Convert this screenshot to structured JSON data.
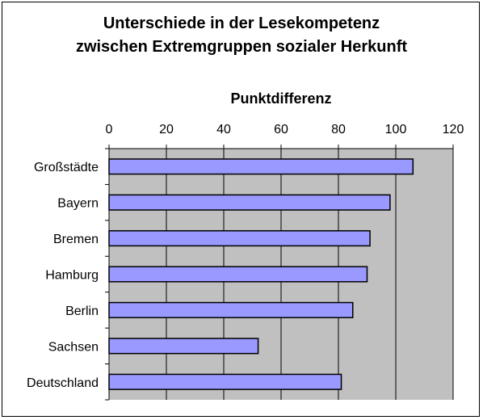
{
  "chart_data": {
    "type": "bar",
    "orientation": "horizontal",
    "title_lines": [
      "Unterschiede in der Lesekompetenz",
      "zwischen Extremgruppen sozialer Herkunft"
    ],
    "xlabel": "Punktdifferenz",
    "xlim": [
      0,
      120
    ],
    "xticks": [
      0,
      20,
      40,
      60,
      80,
      100,
      120
    ],
    "categories": [
      "Großstädte",
      "Bayern",
      "Bremen",
      "Hamburg",
      "Berlin",
      "Sachsen",
      "Deutschland"
    ],
    "values": [
      106,
      98,
      91,
      90,
      85,
      52,
      81
    ],
    "grid": true,
    "legend": "none",
    "colors": {
      "bar": "#9999ff",
      "plot_background": "#c0c0c0",
      "border": "#000000"
    }
  }
}
